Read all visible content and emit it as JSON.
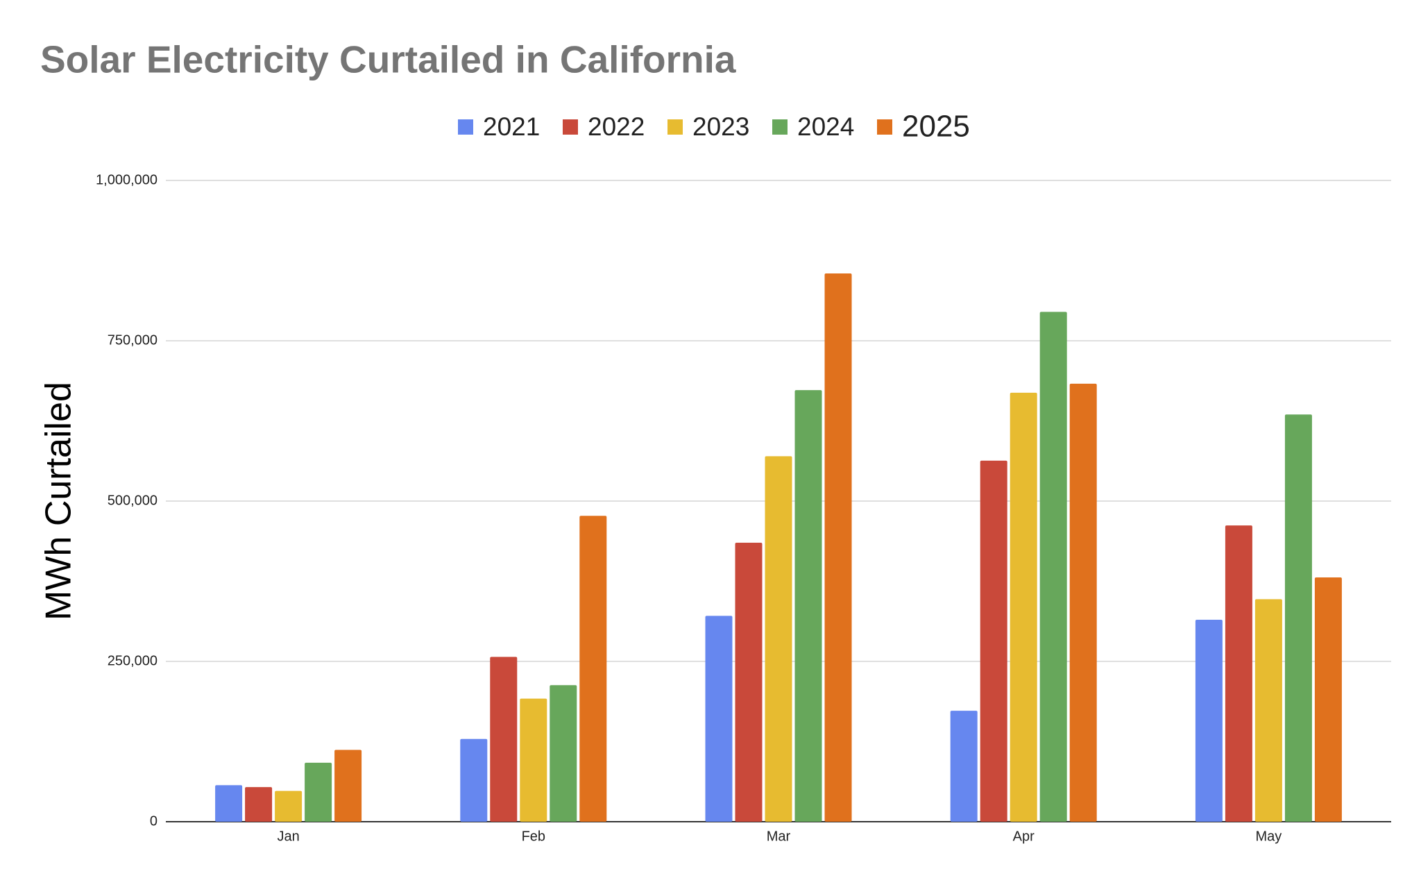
{
  "chart_data": {
    "type": "bar",
    "title": "Solar Electricity Curtailed in California",
    "y_label": "MWh Curtailed",
    "categories": [
      "Jan",
      "Feb",
      "Mar",
      "Apr",
      "May"
    ],
    "series": [
      {
        "name": "2021",
        "color": "#6687ef",
        "values": [
          57000,
          129000,
          321000,
          173000,
          315000
        ]
      },
      {
        "name": "2022",
        "color": "#c9493a",
        "values": [
          54000,
          257000,
          435000,
          563000,
          462000
        ]
      },
      {
        "name": "2023",
        "color": "#e7bb30",
        "values": [
          48000,
          192000,
          570000,
          669000,
          347000
        ]
      },
      {
        "name": "2024",
        "color": "#67a75b",
        "values": [
          92000,
          213000,
          673000,
          795000,
          635000
        ]
      },
      {
        "name": "2025",
        "color": "#e0711d",
        "values": [
          112000,
          477000,
          855000,
          683000,
          381000
        ]
      }
    ],
    "ylim": [
      0,
      1000000
    ],
    "yticks": [
      0,
      {
        "value": 250000,
        "label": "250,000"
      },
      {
        "value": 500000,
        "label": "500,000"
      },
      {
        "value": 750000,
        "label": "750,000"
      },
      {
        "value": 1000000,
        "label": "1,000,000"
      }
    ],
    "grid": true
  }
}
